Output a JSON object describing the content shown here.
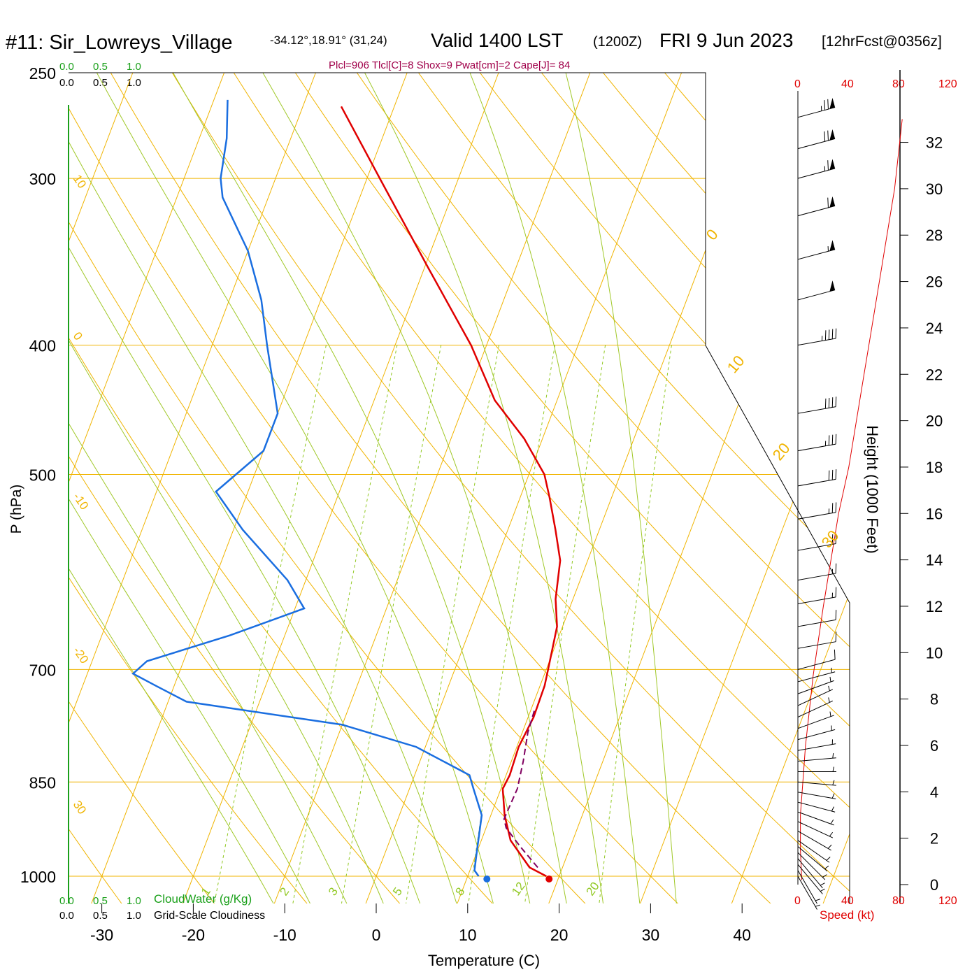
{
  "header": {
    "station": "#11: Sir_Lowreys_Village",
    "coords": "-34.12°,18.91° (31,24)",
    "valid": "Valid 1400 LST",
    "zulu": "(1200Z)",
    "date": "FRI 9 Jun 2023",
    "forecast": "[12hrFcst@0356z]",
    "indices": "Plcl=906 Tlcl[C]=8 Shox=9 Pwat[cm]=2 Cape[J]= 84"
  },
  "scales": {
    "cloudwater_ticks": [
      "0.0",
      "0.5",
      "1.0"
    ],
    "cloudiness_ticks": [
      "0.0",
      "0.5",
      "1.0"
    ],
    "cloudwater_label": "CloudWater (g/Kg)",
    "cloudiness_label": "Grid-Scale Cloudiness",
    "speed_ticks": [
      "0",
      "40",
      "80",
      "120"
    ],
    "speed_label": "Speed (kt)"
  },
  "colors": {
    "isotherm": "#f0b400",
    "dry_adiabat": "#f0b400",
    "moist_adiabat": "#a0c828",
    "mixing_ratio": "#90c820",
    "temperature": "#e00000",
    "dewpoint": "#1a6ee0",
    "parcel": "#800060",
    "cloudwater": "#1aa01a",
    "speed": "#e00000",
    "indices": "#a0004a"
  },
  "chart_data": {
    "type": "skew-t",
    "xlabel": "Temperature (C)",
    "ylabel": "P (hPa)",
    "y2label": "Height (1000 Feet)",
    "x_ticks": [
      -30,
      -20,
      -10,
      0,
      10,
      20,
      30,
      40
    ],
    "x_tick_labels": [
      "-30",
      "-20",
      "-10",
      "0",
      "10",
      "20",
      "30",
      "40"
    ],
    "p_ticks": [
      250,
      300,
      400,
      500,
      700,
      850,
      1000
    ],
    "p_tick_labels": [
      "250",
      "300",
      "400",
      "500",
      "700",
      "850",
      "1000"
    ],
    "height_ticks": [
      0,
      2,
      4,
      6,
      8,
      10,
      12,
      14,
      16,
      18,
      20,
      22,
      24,
      26,
      28,
      30,
      32
    ],
    "height_tick_labels": [
      "0",
      "2",
      "4",
      "6",
      "8",
      "10",
      "12",
      "14",
      "16",
      "18",
      "20",
      "22",
      "24",
      "26",
      "28",
      "30",
      "32"
    ],
    "isotherm_labels": [
      "30",
      "-20",
      "-10",
      "0",
      "10",
      "0",
      "10",
      "20",
      "30"
    ],
    "mixing_ratio_labels": [
      "1",
      "2",
      "3",
      "5",
      "8",
      "12",
      "20"
    ],
    "mixing_ratios": [
      1,
      2,
      3,
      5,
      8,
      12,
      20
    ],
    "temperature": [
      {
        "p": 1000,
        "t": 18.6
      },
      {
        "p": 985,
        "t": 16.4
      },
      {
        "p": 940,
        "t": 13.2
      },
      {
        "p": 900,
        "t": 11.5
      },
      {
        "p": 860,
        "t": 10.2
      },
      {
        "p": 840,
        "t": 10.4
      },
      {
        "p": 800,
        "t": 10.2
      },
      {
        "p": 760,
        "t": 10.6
      },
      {
        "p": 720,
        "t": 10.5
      },
      {
        "p": 700,
        "t": 10.2
      },
      {
        "p": 650,
        "t": 9.4
      },
      {
        "p": 620,
        "t": 8.1
      },
      {
        "p": 580,
        "t": 7.0
      },
      {
        "p": 550,
        "t": 5.2
      },
      {
        "p": 520,
        "t": 3.2
      },
      {
        "p": 500,
        "t": 1.7
      },
      {
        "p": 470,
        "t": -2.0
      },
      {
        "p": 440,
        "t": -6.8
      },
      {
        "p": 400,
        "t": -11.7
      },
      {
        "p": 350,
        "t": -19.6
      },
      {
        "p": 300,
        "t": -28.6
      },
      {
        "p": 265,
        "t": -35.8
      }
    ],
    "dewpoint": [
      {
        "p": 1000,
        "t": 11.2
      },
      {
        "p": 990,
        "t": 10.5
      },
      {
        "p": 960,
        "t": 10.0
      },
      {
        "p": 900,
        "t": 9.0
      },
      {
        "p": 860,
        "t": 7.0
      },
      {
        "p": 840,
        "t": 6.0
      },
      {
        "p": 800,
        "t": -1.0
      },
      {
        "p": 770,
        "t": -10.0
      },
      {
        "p": 740,
        "t": -28.0
      },
      {
        "p": 720,
        "t": -32.0
      },
      {
        "p": 705,
        "t": -35.0
      },
      {
        "p": 690,
        "t": -34.0
      },
      {
        "p": 660,
        "t": -26.0
      },
      {
        "p": 630,
        "t": -19.0
      },
      {
        "p": 600,
        "t": -22.0
      },
      {
        "p": 550,
        "t": -29.0
      },
      {
        "p": 515,
        "t": -33.5
      },
      {
        "p": 480,
        "t": -30.0
      },
      {
        "p": 450,
        "t": -30.0
      },
      {
        "p": 400,
        "t": -34.0
      },
      {
        "p": 370,
        "t": -36.5
      },
      {
        "p": 340,
        "t": -40.0
      },
      {
        "p": 310,
        "t": -45.0
      },
      {
        "p": 300,
        "t": -46.0
      },
      {
        "p": 280,
        "t": -47.0
      },
      {
        "p": 262,
        "t": -48.5
      }
    ],
    "parcel": [
      {
        "p": 985,
        "t": 17.3
      },
      {
        "p": 950,
        "t": 14.5
      },
      {
        "p": 920,
        "t": 12.2
      },
      {
        "p": 906,
        "t": 11.6
      },
      {
        "p": 860,
        "t": 11.8
      },
      {
        "p": 820,
        "t": 11.3
      },
      {
        "p": 780,
        "t": 10.6
      },
      {
        "p": 750,
        "t": 10.4
      }
    ],
    "surface_temperature": 18.9,
    "surface_dewpoint": 12.1,
    "wind_speed_profile": [
      {
        "h": 0.2,
        "kt": 3
      },
      {
        "h": 1.5,
        "kt": 2
      },
      {
        "h": 3.0,
        "kt": 2
      },
      {
        "h": 4.5,
        "kt": 4
      },
      {
        "h": 6.0,
        "kt": 6
      },
      {
        "h": 7.5,
        "kt": 9
      },
      {
        "h": 9.0,
        "kt": 12
      },
      {
        "h": 10.5,
        "kt": 16
      },
      {
        "h": 12.0,
        "kt": 20
      },
      {
        "h": 14.0,
        "kt": 26
      },
      {
        "h": 16.0,
        "kt": 32
      },
      {
        "h": 18.0,
        "kt": 40
      },
      {
        "h": 20.0,
        "kt": 46
      },
      {
        "h": 22.0,
        "kt": 52
      },
      {
        "h": 24.0,
        "kt": 58
      },
      {
        "h": 26.0,
        "kt": 64
      },
      {
        "h": 28.0,
        "kt": 70
      },
      {
        "h": 30.0,
        "kt": 76
      },
      {
        "h": 32.0,
        "kt": 80
      },
      {
        "h": 33.0,
        "kt": 82
      }
    ],
    "wind_barbs": [
      {
        "p": 1000,
        "dir": 330,
        "kt": 5
      },
      {
        "p": 990,
        "dir": 330,
        "kt": 5
      },
      {
        "p": 980,
        "dir": 320,
        "kt": 5
      },
      {
        "p": 970,
        "dir": 320,
        "kt": 5
      },
      {
        "p": 960,
        "dir": 315,
        "kt": 5
      },
      {
        "p": 950,
        "dir": 310,
        "kt": 5
      },
      {
        "p": 940,
        "dir": 305,
        "kt": 5
      },
      {
        "p": 925,
        "dir": 300,
        "kt": 5
      },
      {
        "p": 910,
        "dir": 295,
        "kt": 5
      },
      {
        "p": 895,
        "dir": 290,
        "kt": 5
      },
      {
        "p": 880,
        "dir": 285,
        "kt": 5
      },
      {
        "p": 865,
        "dir": 280,
        "kt": 5
      },
      {
        "p": 850,
        "dir": 275,
        "kt": 5
      },
      {
        "p": 835,
        "dir": 270,
        "kt": 5
      },
      {
        "p": 820,
        "dir": 265,
        "kt": 5
      },
      {
        "p": 805,
        "dir": 260,
        "kt": 5
      },
      {
        "p": 790,
        "dir": 255,
        "kt": 5
      },
      {
        "p": 775,
        "dir": 250,
        "kt": 5
      },
      {
        "p": 760,
        "dir": 245,
        "kt": 5
      },
      {
        "p": 745,
        "dir": 245,
        "kt": 5
      },
      {
        "p": 730,
        "dir": 250,
        "kt": 5
      },
      {
        "p": 715,
        "dir": 255,
        "kt": 5
      },
      {
        "p": 700,
        "dir": 255,
        "kt": 10
      },
      {
        "p": 675,
        "dir": 260,
        "kt": 10
      },
      {
        "p": 650,
        "dir": 260,
        "kt": 10
      },
      {
        "p": 625,
        "dir": 260,
        "kt": 15
      },
      {
        "p": 600,
        "dir": 260,
        "kt": 15
      },
      {
        "p": 570,
        "dir": 260,
        "kt": 20
      },
      {
        "p": 540,
        "dir": 260,
        "kt": 25
      },
      {
        "p": 510,
        "dir": 260,
        "kt": 30
      },
      {
        "p": 480,
        "dir": 260,
        "kt": 35
      },
      {
        "p": 450,
        "dir": 260,
        "kt": 40
      },
      {
        "p": 400,
        "dir": 260,
        "kt": 45
      },
      {
        "p": 370,
        "dir": 255,
        "kt": 50
      },
      {
        "p": 345,
        "dir": 255,
        "kt": 55
      },
      {
        "p": 320,
        "dir": 255,
        "kt": 60
      },
      {
        "p": 300,
        "dir": 255,
        "kt": 65
      },
      {
        "p": 285,
        "dir": 255,
        "kt": 70
      },
      {
        "p": 270,
        "dir": 255,
        "kt": 75
      }
    ]
  }
}
